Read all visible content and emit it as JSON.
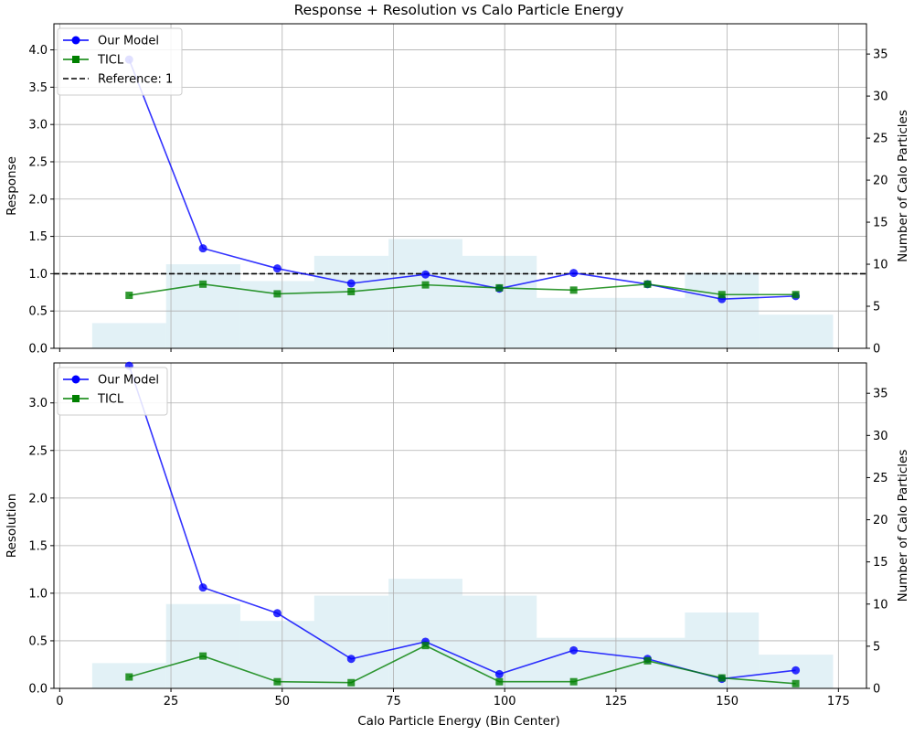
{
  "chart_data": {
    "type": "line",
    "title": "Response + Resolution vs Calo Particle Energy",
    "xlabel": "Calo Particle Energy (Bin Center)",
    "xlim": [
      -1.3,
      181.3
    ],
    "xticks": [
      0,
      25,
      50,
      75,
      100,
      125,
      150,
      175
    ],
    "x": [
      15.6,
      32.2,
      48.9,
      65.5,
      82.2,
      98.8,
      115.5,
      132.1,
      148.8,
      165.4
    ],
    "histogram": {
      "bin_edges": [
        7.3,
        23.9,
        40.6,
        57.2,
        73.9,
        90.5,
        107.2,
        123.8,
        140.5,
        157.1,
        173.8
      ],
      "counts": [
        3,
        10,
        8,
        11,
        13,
        11,
        6,
        6,
        9,
        4
      ],
      "color": "#add8e6"
    },
    "colors": {
      "our_model": "#0000ff",
      "ticl": "#008000",
      "reference": "#000000",
      "grid": "#b0b0b0"
    },
    "panels": [
      {
        "ylabel": "Response",
        "ylabel_right": "Number of Calo Particles",
        "ylim": [
          0,
          4.35
        ],
        "yticks": [
          "0.0",
          "0.5",
          "1.0",
          "1.5",
          "2.0",
          "2.5",
          "3.0",
          "3.5",
          "4.0"
        ],
        "y2lim": [
          0,
          38.6
        ],
        "y2ticks": [
          "0",
          "5",
          "10",
          "15",
          "20",
          "25",
          "30",
          "35"
        ],
        "series": [
          {
            "name": "Our Model",
            "values": [
              3.87,
              1.34,
              1.07,
              0.87,
              0.99,
              0.8,
              1.01,
              0.86,
              0.66,
              0.7
            ]
          },
          {
            "name": "TICL",
            "values": [
              0.71,
              0.86,
              0.73,
              0.76,
              0.85,
              0.81,
              0.78,
              0.86,
              0.72,
              0.72
            ]
          }
        ],
        "reference": {
          "name": "Reference: 1",
          "value": 1
        },
        "legend": [
          "Our Model",
          "TICL",
          "Reference: 1"
        ],
        "legend_position": "top-left"
      },
      {
        "ylabel": "Resolution",
        "ylabel_right": "Number of Calo Particles",
        "ylim": [
          0,
          3.42
        ],
        "yticks": [
          "0.0",
          "0.5",
          "1.0",
          "1.5",
          "2.0",
          "2.5",
          "3.0"
        ],
        "y2lim": [
          0,
          38.6
        ],
        "y2ticks": [
          "0",
          "5",
          "10",
          "15",
          "20",
          "25",
          "30",
          "35"
        ],
        "series": [
          {
            "name": "Our Model",
            "values": [
              3.39,
              1.06,
              0.79,
              0.31,
              0.49,
              0.15,
              0.4,
              0.31,
              0.1,
              0.19
            ]
          },
          {
            "name": "TICL",
            "values": [
              0.12,
              0.34,
              0.07,
              0.06,
              0.45,
              0.07,
              0.07,
              0.29,
              0.11,
              0.05
            ]
          }
        ],
        "legend": [
          "Our Model",
          "TICL"
        ],
        "legend_position": "top-left"
      }
    ],
    "grid": true
  }
}
